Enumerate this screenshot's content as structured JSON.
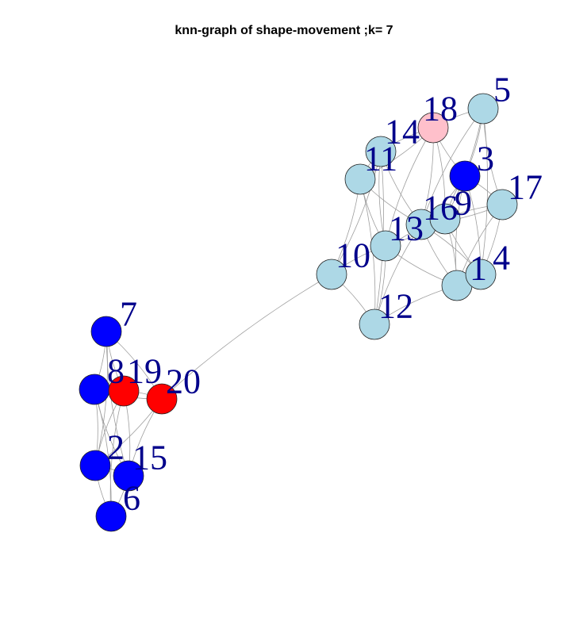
{
  "title": "knn-graph of shape-movement ;k= 7",
  "colors": {
    "lightblue": "#add8e6",
    "blue": "#0000ff",
    "red": "#ff0000",
    "pink": "#ffc0cb",
    "edge": "#9e9e9e",
    "label": "#00008b"
  },
  "nodes": [
    {
      "id": "n5",
      "label": "5",
      "color": "lightblue"
    },
    {
      "id": "n18",
      "label": "18",
      "color": "pink"
    },
    {
      "id": "n14a",
      "label": "14",
      "color": "lightblue"
    },
    {
      "id": "n11",
      "label": "11",
      "color": "lightblue"
    },
    {
      "id": "n3",
      "label": "3",
      "color": "blue"
    },
    {
      "id": "n17",
      "label": "17",
      "color": "lightblue"
    },
    {
      "id": "n16",
      "label": "16",
      "color": "lightblue"
    },
    {
      "id": "n9",
      "label": "9",
      "color": "lightblue"
    },
    {
      "id": "n13",
      "label": "13",
      "color": "lightblue"
    },
    {
      "id": "n10",
      "label": "10",
      "color": "lightblue"
    },
    {
      "id": "n1",
      "label": "1",
      "color": "lightblue"
    },
    {
      "id": "n4",
      "label": "4",
      "color": "lightblue"
    },
    {
      "id": "n12",
      "label": "12",
      "color": "lightblue"
    },
    {
      "id": "n7",
      "label": "7",
      "color": "blue"
    },
    {
      "id": "n8",
      "label": "8",
      "color": "blue"
    },
    {
      "id": "n19",
      "label": "19",
      "color": "red"
    },
    {
      "id": "n20",
      "label": "20",
      "color": "red"
    },
    {
      "id": "n2",
      "label": "2",
      "color": "blue"
    },
    {
      "id": "n15",
      "label": "15",
      "color": "blue"
    },
    {
      "id": "n6",
      "label": "6",
      "color": "blue"
    }
  ],
  "edges": [
    [
      "n5",
      "n18"
    ],
    [
      "n5",
      "n3"
    ],
    [
      "n5",
      "n17"
    ],
    [
      "n5",
      "n9"
    ],
    [
      "n5",
      "n16"
    ],
    [
      "n5",
      "n4"
    ],
    [
      "n18",
      "n14a"
    ],
    [
      "n18",
      "n11"
    ],
    [
      "n18",
      "n3"
    ],
    [
      "n18",
      "n16"
    ],
    [
      "n18",
      "n13"
    ],
    [
      "n18",
      "n9"
    ],
    [
      "n14a",
      "n11"
    ],
    [
      "n14a",
      "n10"
    ],
    [
      "n14a",
      "n13"
    ],
    [
      "n14a",
      "n12"
    ],
    [
      "n14a",
      "n16"
    ],
    [
      "n11",
      "n10"
    ],
    [
      "n11",
      "n13"
    ],
    [
      "n11",
      "n12"
    ],
    [
      "n11",
      "n16"
    ],
    [
      "n3",
      "n17"
    ],
    [
      "n3",
      "n9"
    ],
    [
      "n3",
      "n16"
    ],
    [
      "n3",
      "n1"
    ],
    [
      "n3",
      "n4"
    ],
    [
      "n17",
      "n9"
    ],
    [
      "n17",
      "n4"
    ],
    [
      "n17",
      "n1"
    ],
    [
      "n17",
      "n16"
    ],
    [
      "n16",
      "n9"
    ],
    [
      "n16",
      "n13"
    ],
    [
      "n16",
      "n1"
    ],
    [
      "n16",
      "n4"
    ],
    [
      "n16",
      "n12"
    ],
    [
      "n9",
      "n1"
    ],
    [
      "n9",
      "n4"
    ],
    [
      "n9",
      "n13"
    ],
    [
      "n13",
      "n10"
    ],
    [
      "n13",
      "n12"
    ],
    [
      "n13",
      "n1"
    ],
    [
      "n10",
      "n12"
    ],
    [
      "n10",
      "n20"
    ],
    [
      "n1",
      "n4"
    ],
    [
      "n1",
      "n12"
    ],
    [
      "n7",
      "n8"
    ],
    [
      "n7",
      "n19"
    ],
    [
      "n7",
      "n2"
    ],
    [
      "n7",
      "n15"
    ],
    [
      "n7",
      "n20"
    ],
    [
      "n8",
      "n19"
    ],
    [
      "n8",
      "n2"
    ],
    [
      "n8",
      "n15"
    ],
    [
      "n8",
      "n6"
    ],
    [
      "n8",
      "n20"
    ],
    [
      "n19",
      "n20"
    ],
    [
      "n19",
      "n2"
    ],
    [
      "n19",
      "n15"
    ],
    [
      "n19",
      "n6"
    ],
    [
      "n20",
      "n2"
    ],
    [
      "n20",
      "n15"
    ],
    [
      "n2",
      "n15"
    ],
    [
      "n2",
      "n6"
    ],
    [
      "n15",
      "n6"
    ]
  ]
}
